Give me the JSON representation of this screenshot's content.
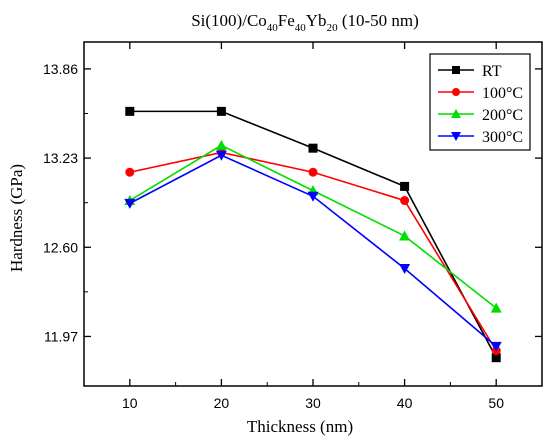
{
  "chart_data": {
    "type": "line",
    "title": {
      "prefix": "Si(100)/Co",
      "co_sub": "40",
      "fe": "Fe",
      "fe_sub": "40",
      "yb": "Yb",
      "yb_sub": "20",
      "suffix": " (10-50 nm)"
    },
    "xlabel": "Thickness (nm)",
    "ylabel": "Hardness (GPa)",
    "x": [
      10,
      20,
      30,
      40,
      50
    ],
    "xlim": [
      5,
      55
    ],
    "ylim": [
      11.62,
      14.05
    ],
    "xticks": [
      10,
      20,
      30,
      40,
      50
    ],
    "yticks": [
      11.97,
      12.6,
      13.23,
      13.86
    ],
    "ytick_labels": [
      "11.97",
      "12.60",
      "13.23",
      "13.86"
    ],
    "grid": false,
    "legend_position": "top-right",
    "series": [
      {
        "name": "RT",
        "color": "#000000",
        "marker": "square",
        "values": [
          13.56,
          13.56,
          13.3,
          13.03,
          11.82
        ]
      },
      {
        "name": "100°C",
        "color": "#ff0000",
        "marker": "circle",
        "values": [
          13.13,
          13.27,
          13.13,
          12.93,
          11.87
        ]
      },
      {
        "name": "200°C",
        "color": "#00dd00",
        "marker": "triangle-up",
        "values": [
          12.93,
          13.32,
          13.0,
          12.68,
          12.17
        ]
      },
      {
        "name": "300°C",
        "color": "#0000ff",
        "marker": "triangle-down",
        "values": [
          12.91,
          13.25,
          12.96,
          12.45,
          11.9
        ]
      }
    ]
  }
}
